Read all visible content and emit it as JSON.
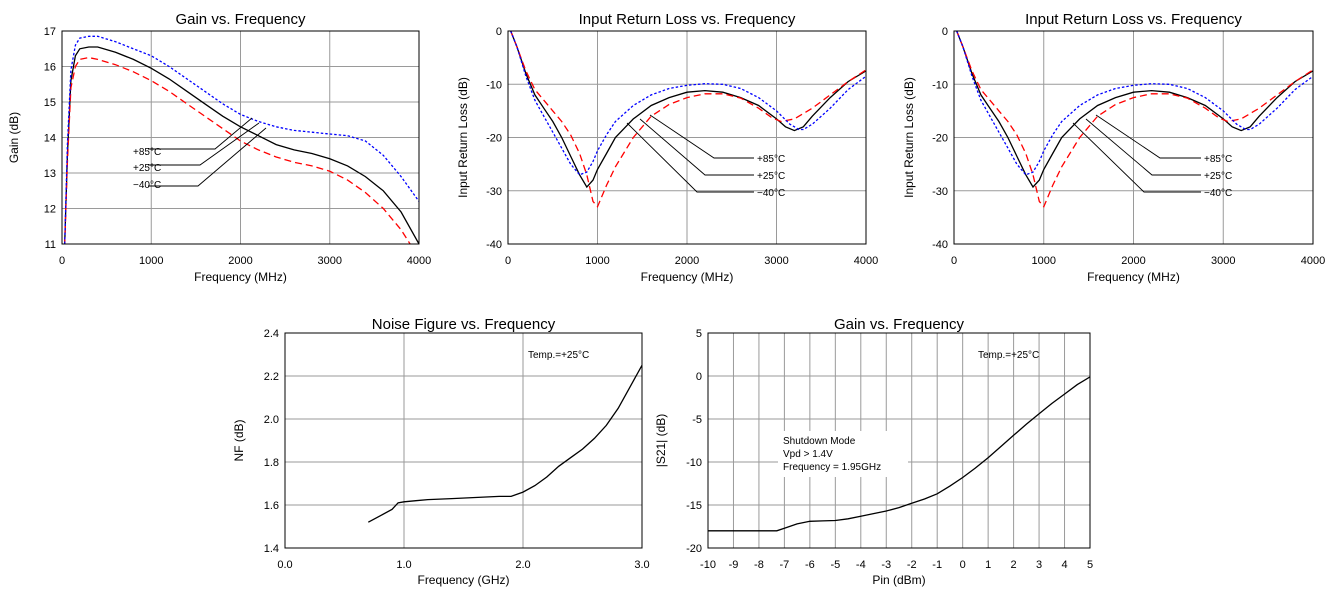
{
  "chart_data": [
    {
      "type": "line",
      "title": "Gain vs. Frequency",
      "xlabel": "Frequency (MHz)",
      "ylabel": "Gain (dB)",
      "xlim": [
        0,
        4000
      ],
      "ylim": [
        11,
        17
      ],
      "xticks": [
        0,
        1000,
        2000,
        3000,
        4000
      ],
      "yticks": [
        11,
        12,
        13,
        14,
        15,
        16,
        17
      ],
      "grid": true,
      "series": [
        {
          "name": "+25°C",
          "color": "#000000",
          "dash": "solid",
          "x": [
            30,
            60,
            100,
            150,
            200,
            300,
            400,
            600,
            800,
            1000,
            1200,
            1400,
            1600,
            1800,
            2000,
            2200,
            2400,
            2600,
            2800,
            3000,
            3200,
            3400,
            3600,
            3800,
            4000
          ],
          "y": [
            11.0,
            13.5,
            15.6,
            16.3,
            16.5,
            16.55,
            16.55,
            16.4,
            16.2,
            15.95,
            15.65,
            15.3,
            14.95,
            14.6,
            14.3,
            14.05,
            13.8,
            13.65,
            13.55,
            13.4,
            13.2,
            12.9,
            12.5,
            11.9,
            11.0
          ]
        },
        {
          "name": "+85°C",
          "color": "#ff0000",
          "dash": "dash",
          "x": [
            30,
            60,
            100,
            150,
            200,
            300,
            400,
            600,
            800,
            1000,
            1200,
            1400,
            1600,
            1800,
            2000,
            2200,
            2400,
            2600,
            2800,
            3000,
            3200,
            3400,
            3600,
            3800,
            3900
          ],
          "y": [
            11.0,
            13.3,
            15.4,
            16.0,
            16.2,
            16.25,
            16.2,
            16.05,
            15.85,
            15.6,
            15.3,
            14.95,
            14.6,
            14.25,
            13.9,
            13.65,
            13.45,
            13.3,
            13.2,
            13.05,
            12.8,
            12.45,
            12.0,
            11.4,
            11.0
          ]
        },
        {
          "name": "−40°C",
          "color": "#0000ff",
          "dash": "dot",
          "x": [
            30,
            60,
            100,
            150,
            200,
            300,
            400,
            600,
            800,
            1000,
            1200,
            1400,
            1600,
            1800,
            2000,
            2200,
            2400,
            2600,
            2800,
            3000,
            3200,
            3400,
            3600,
            3800,
            4000
          ],
          "y": [
            11.0,
            13.8,
            15.9,
            16.6,
            16.8,
            16.85,
            16.85,
            16.7,
            16.5,
            16.3,
            16.0,
            15.65,
            15.3,
            14.95,
            14.65,
            14.45,
            14.3,
            14.2,
            14.15,
            14.1,
            14.05,
            13.9,
            13.5,
            12.9,
            12.2
          ]
        }
      ],
      "annotations": [
        "+85°C",
        "+25°C",
        "−40°C"
      ]
    },
    {
      "type": "line",
      "title": "Input Return Loss vs. Frequency",
      "xlabel": "Frequency (MHz)",
      "ylabel": "Input Return Loss (dB)",
      "xlim": [
        0,
        4000
      ],
      "ylim": [
        -40,
        0
      ],
      "xticks": [
        0,
        1000,
        2000,
        3000,
        4000
      ],
      "yticks": [
        -40,
        -30,
        -20,
        -10,
        0
      ],
      "grid": true,
      "series": [
        {
          "name": "+25°C",
          "color": "#000000",
          "dash": "solid",
          "x": [
            30,
            100,
            200,
            300,
            400,
            500,
            600,
            700,
            800,
            880,
            950,
            1000,
            1100,
            1200,
            1400,
            1600,
            1800,
            2000,
            2200,
            2400,
            2600,
            2800,
            3000,
            3100,
            3200,
            3300,
            3400,
            3600,
            3800,
            4000
          ],
          "y": [
            0.0,
            -3.0,
            -8.0,
            -12.0,
            -14.5,
            -17.0,
            -20.0,
            -23.5,
            -27.0,
            -29.3,
            -28.0,
            -26.0,
            -23.0,
            -20.0,
            -16.5,
            -14.0,
            -12.5,
            -11.5,
            -11.2,
            -11.5,
            -12.5,
            -14.0,
            -16.5,
            -18.0,
            -18.7,
            -18.0,
            -16.0,
            -12.5,
            -9.5,
            -7.5
          ]
        },
        {
          "name": "+85°C",
          "color": "#ff0000",
          "dash": "dash",
          "x": [
            30,
            100,
            200,
            300,
            400,
            500,
            600,
            700,
            800,
            880,
            950,
            1000,
            1100,
            1200,
            1400,
            1600,
            1800,
            2000,
            2200,
            2400,
            2600,
            2800,
            2950,
            3050,
            3200,
            3400,
            3600,
            3800,
            4000
          ],
          "y": [
            0.0,
            -3.0,
            -7.5,
            -11.0,
            -13.0,
            -15.0,
            -17.0,
            -19.5,
            -23.0,
            -27.0,
            -32.0,
            -33.0,
            -29.0,
            -25.5,
            -20.0,
            -16.0,
            -13.8,
            -12.5,
            -11.8,
            -11.8,
            -12.6,
            -14.5,
            -16.3,
            -17.0,
            -16.5,
            -14.5,
            -12.0,
            -9.5,
            -7.3
          ]
        },
        {
          "name": "−40°C",
          "color": "#0000ff",
          "dash": "dot",
          "x": [
            30,
            100,
            200,
            300,
            400,
            500,
            600,
            700,
            800,
            880,
            950,
            1000,
            1100,
            1200,
            1400,
            1600,
            1800,
            2000,
            2200,
            2400,
            2600,
            2800,
            3000,
            3150,
            3250,
            3300,
            3400,
            3600,
            3800,
            4000
          ],
          "y": [
            0.0,
            -3.0,
            -8.5,
            -13.0,
            -16.0,
            -19.0,
            -22.0,
            -25.0,
            -27.0,
            -26.5,
            -24.5,
            -22.5,
            -19.5,
            -17.0,
            -14.0,
            -12.0,
            -10.8,
            -10.2,
            -9.9,
            -10.0,
            -10.8,
            -12.5,
            -15.0,
            -17.5,
            -18.5,
            -18.5,
            -17.5,
            -14.5,
            -11.0,
            -8.5
          ]
        }
      ],
      "annotations": [
        "+85°C",
        "+25°C",
        "−40°C"
      ]
    },
    {
      "type": "line",
      "title": "Input Return Loss vs. Frequency",
      "xlabel": "Frequency (MHz)",
      "ylabel": "Input Return Loss (dB)",
      "xlim": [
        0,
        4000
      ],
      "ylim": [
        -40,
        0
      ],
      "xticks": [
        0,
        1000,
        2000,
        3000,
        4000
      ],
      "yticks": [
        -40,
        -30,
        -20,
        -10,
        0
      ],
      "grid": true,
      "series": [
        {
          "name": "+25°C",
          "color": "#000000",
          "dash": "solid",
          "x": [
            30,
            100,
            200,
            300,
            400,
            500,
            600,
            700,
            800,
            880,
            950,
            1000,
            1100,
            1200,
            1400,
            1600,
            1800,
            2000,
            2200,
            2400,
            2600,
            2800,
            3000,
            3100,
            3200,
            3300,
            3400,
            3600,
            3800,
            4000
          ],
          "y": [
            0.0,
            -3.0,
            -8.0,
            -12.0,
            -14.5,
            -17.0,
            -20.0,
            -23.5,
            -27.0,
            -29.3,
            -28.0,
            -26.0,
            -23.0,
            -20.0,
            -16.5,
            -14.0,
            -12.5,
            -11.5,
            -11.2,
            -11.5,
            -12.5,
            -14.0,
            -16.5,
            -18.0,
            -18.7,
            -18.0,
            -16.0,
            -12.5,
            -9.5,
            -7.5
          ]
        },
        {
          "name": "+85°C",
          "color": "#ff0000",
          "dash": "dash",
          "x": [
            30,
            100,
            200,
            300,
            400,
            500,
            600,
            700,
            800,
            880,
            950,
            1000,
            1100,
            1200,
            1400,
            1600,
            1800,
            2000,
            2200,
            2400,
            2600,
            2800,
            2950,
            3050,
            3200,
            3400,
            3600,
            3800,
            4000
          ],
          "y": [
            0.0,
            -3.0,
            -7.5,
            -11.0,
            -13.0,
            -15.0,
            -17.0,
            -19.5,
            -23.0,
            -27.0,
            -32.0,
            -33.0,
            -29.0,
            -25.5,
            -20.0,
            -16.0,
            -13.8,
            -12.5,
            -11.8,
            -11.8,
            -12.6,
            -14.5,
            -16.3,
            -17.0,
            -16.5,
            -14.5,
            -12.0,
            -9.5,
            -7.3
          ]
        },
        {
          "name": "−40°C",
          "color": "#0000ff",
          "dash": "dot",
          "x": [
            30,
            100,
            200,
            300,
            400,
            500,
            600,
            700,
            800,
            880,
            950,
            1000,
            1100,
            1200,
            1400,
            1600,
            1800,
            2000,
            2200,
            2400,
            2600,
            2800,
            3000,
            3150,
            3250,
            3300,
            3400,
            3600,
            3800,
            4000
          ],
          "y": [
            0.0,
            -3.0,
            -8.5,
            -13.0,
            -16.0,
            -19.0,
            -22.0,
            -25.0,
            -27.0,
            -26.5,
            -24.5,
            -22.5,
            -19.5,
            -17.0,
            -14.0,
            -12.0,
            -10.8,
            -10.2,
            -9.9,
            -10.0,
            -10.8,
            -12.5,
            -15.0,
            -17.5,
            -18.5,
            -18.5,
            -17.5,
            -14.5,
            -11.0,
            -8.5
          ]
        }
      ],
      "annotations": [
        "+85°C",
        "+25°C",
        "−40°C"
      ]
    },
    {
      "type": "line",
      "title": "Noise Figure vs. Frequency",
      "xlabel": "Frequency (GHz)",
      "ylabel": "NF (dB)",
      "xlim": [
        0,
        3
      ],
      "ylim": [
        1.4,
        2.4
      ],
      "xticks": [
        0,
        1,
        2,
        3
      ],
      "yticks": [
        1.4,
        1.6,
        1.8,
        2.0,
        2.2,
        2.4
      ],
      "grid": true,
      "series": [
        {
          "name": "",
          "color": "#000000",
          "dash": "solid",
          "x": [
            0.7,
            0.8,
            0.9,
            0.95,
            1.0,
            1.1,
            1.2,
            1.4,
            1.6,
            1.8,
            1.9,
            2.0,
            2.1,
            2.2,
            2.3,
            2.4,
            2.5,
            2.6,
            2.7,
            2.8,
            2.9,
            3.0
          ],
          "y": [
            1.52,
            1.55,
            1.58,
            1.61,
            1.615,
            1.62,
            1.625,
            1.63,
            1.635,
            1.64,
            1.64,
            1.66,
            1.69,
            1.73,
            1.78,
            1.82,
            1.86,
            1.91,
            1.97,
            2.05,
            2.15,
            2.25
          ]
        }
      ],
      "annotations": [
        "Temp.=+25°C"
      ]
    },
    {
      "type": "line",
      "title": "Gain vs. Frequency",
      "xlabel": "Pin (dBm)",
      "ylabel": "|S21| (dB)",
      "xlim": [
        -10,
        5
      ],
      "ylim": [
        -20,
        5
      ],
      "xticks": [
        -10,
        -9,
        -8,
        -7,
        -6,
        -5,
        -4,
        -3,
        -2,
        -1,
        0,
        1,
        2,
        3,
        4,
        5
      ],
      "yticks": [
        -20,
        -15,
        -10,
        -5,
        0,
        5
      ],
      "grid": true,
      "series": [
        {
          "name": "",
          "color": "#000000",
          "dash": "solid",
          "x": [
            -10,
            -9,
            -8,
            -7.3,
            -7.0,
            -6.5,
            -6.0,
            -5.5,
            -5.0,
            -4.5,
            -4.0,
            -3.5,
            -3.0,
            -2.5,
            -2.0,
            -1.5,
            -1.0,
            -0.5,
            0,
            0.5,
            1,
            1.5,
            2,
            2.5,
            3,
            3.5,
            4,
            4.5,
            5
          ],
          "y": [
            -18.0,
            -18.0,
            -18.0,
            -18.0,
            -17.7,
            -17.2,
            -16.9,
            -16.85,
            -16.8,
            -16.6,
            -16.3,
            -16.0,
            -15.7,
            -15.3,
            -14.8,
            -14.3,
            -13.7,
            -12.8,
            -11.8,
            -10.7,
            -9.5,
            -8.2,
            -6.9,
            -5.6,
            -4.4,
            -3.2,
            -2.1,
            -1.0,
            -0.1
          ]
        }
      ],
      "annotations": [
        "Temp.=+25°C",
        "Shutdown Mode",
        "Vpd > 1.4V",
        "Frequency = 1.95GHz"
      ]
    }
  ]
}
